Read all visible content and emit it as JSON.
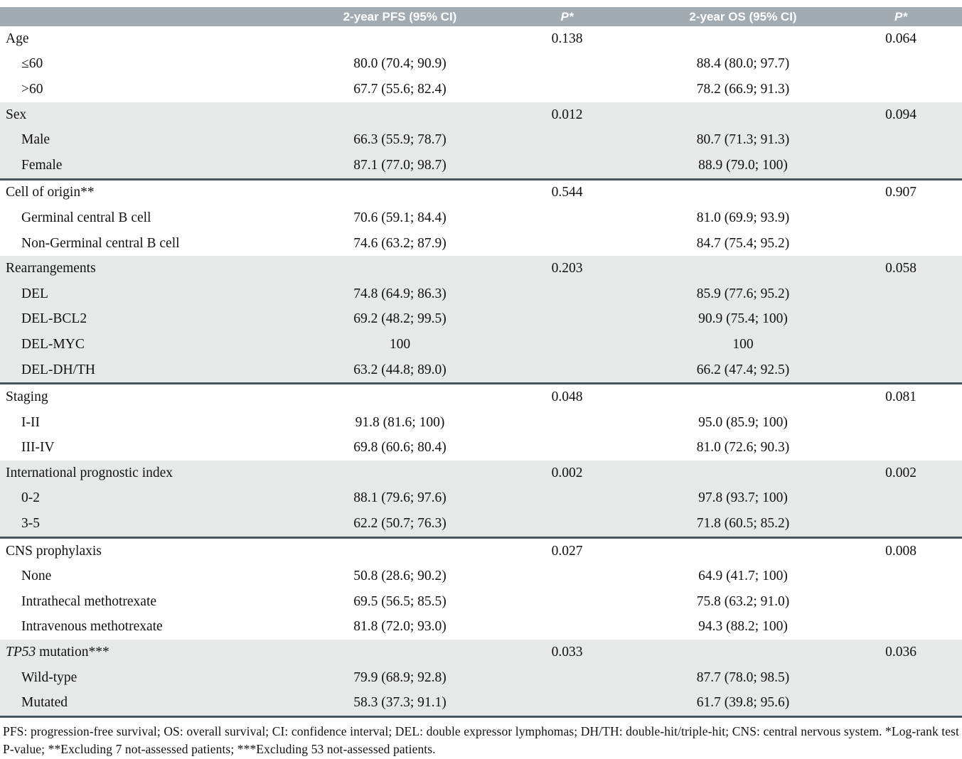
{
  "header": {
    "pfs": "2-year PFS (95% CI)",
    "p1": "P*",
    "os": "2-year OS (95% CI)",
    "p2": "P*"
  },
  "colors": {
    "header_bg": "#a2abb2",
    "shaded_row_bg": "#e7e8e8",
    "divider": "#47575f",
    "header_text": "#ffffff",
    "body_text": "#111111"
  },
  "chart_data": {
    "type": "table",
    "columns": [
      "",
      "2-year PFS (95% CI)",
      "P*",
      "2-year OS (95% CI)",
      "P*"
    ],
    "sections": [
      {
        "name": "Age",
        "shaded": false,
        "p_pfs": "0.138",
        "p_os": "0.064",
        "rows": [
          {
            "label": "≤60",
            "pfs": "80.0 (70.4; 90.9)",
            "os": "88.4 (80.0; 97.7)"
          },
          {
            "label": ">60",
            "pfs": "67.7 (55.6; 82.4)",
            "os": "78.2 (66.9; 91.3)"
          }
        ]
      },
      {
        "name": "Sex",
        "shaded": true,
        "p_pfs": "0.012",
        "p_os": "0.094",
        "rows": [
          {
            "label": "Male",
            "pfs": "66.3 (55.9; 78.7)",
            "os": "80.7 (71.3; 91.3)"
          },
          {
            "label": "Female",
            "pfs": "87.1 (77.0; 98.7)",
            "os": "88.9 (79.0; 100)"
          }
        ]
      },
      {
        "name": "Cell of origin**",
        "shaded": false,
        "p_pfs": "0.544",
        "p_os": "0.907",
        "rows": [
          {
            "label": "Germinal central B cell",
            "pfs": "70.6 (59.1; 84.4)",
            "os": "81.0 (69.9; 93.9)"
          },
          {
            "label": "Non-Germinal central B cell",
            "pfs": "74.6 (63.2; 87.9)",
            "os": "84.7 (75.4; 95.2)"
          }
        ]
      },
      {
        "name": "Rearrangements",
        "shaded": true,
        "p_pfs": "0.203",
        "p_os": "0.058",
        "rows": [
          {
            "label": "DEL",
            "pfs": "74.8 (64.9; 86.3)",
            "os": "85.9 (77.6; 95.2)"
          },
          {
            "label": "DEL-BCL2",
            "pfs": "69.2 (48.2; 99.5)",
            "os": "90.9 (75.4; 100)"
          },
          {
            "label": "DEL-MYC",
            "pfs": "100",
            "os": "100"
          },
          {
            "label": "DEL-DH/TH",
            "pfs": "63.2 (44.8; 89.0)",
            "os": "66.2 (47.4; 92.5)"
          }
        ]
      },
      {
        "name": "Staging",
        "shaded": false,
        "p_pfs": "0.048",
        "p_os": "0.081",
        "rows": [
          {
            "label": "I-II",
            "pfs": "91.8 (81.6; 100)",
            "os": "95.0 (85.9; 100)"
          },
          {
            "label": "III-IV",
            "pfs": "69.8 (60.6; 80.4)",
            "os": "81.0 (72.6; 90.3)"
          }
        ]
      },
      {
        "name": "International prognostic index",
        "shaded": true,
        "p_pfs": "0.002",
        "p_os": "0.002",
        "rows": [
          {
            "label": "0-2",
            "pfs": "88.1 (79.6; 97.6)",
            "os": "97.8 (93.7; 100)"
          },
          {
            "label": "3-5",
            "pfs": "62.2 (50.7; 76.3)",
            "os": "71.8 (60.5; 85.2)"
          }
        ]
      },
      {
        "name": "CNS prophylaxis",
        "shaded": false,
        "p_pfs": "0.027",
        "p_os": "0.008",
        "rows": [
          {
            "label": "None",
            "pfs": "50.8 (28.6; 90.2)",
            "os": "64.9 (41.7; 100)"
          },
          {
            "label": "Intrathecal methotrexate",
            "pfs": "69.5 (56.5; 85.5)",
            "os": "75.8 (63.2; 91.0)"
          },
          {
            "label": "Intravenous methotrexate",
            "pfs": "81.8 (72.0; 93.0)",
            "os": "94.3 (88.2; 100)"
          }
        ]
      },
      {
        "name": " mutation***",
        "name_italic_prefix": "TP53",
        "shaded": true,
        "p_pfs": "0.033",
        "p_os": "0.036",
        "rows": [
          {
            "label": "Wild-type",
            "pfs": "79.9 (68.9; 92.8)",
            "os": "87.7 (78.0; 98.5)"
          },
          {
            "label": "Mutated",
            "pfs": "58.3 (37.3; 91.1)",
            "os": "61.7 (39.8; 95.6)"
          }
        ]
      }
    ]
  },
  "footnote": "PFS: progression-free survival; OS: overall survival; CI: confidence interval; DEL: double expressor lymphomas; DH/TH: double-hit/triple-hit; CNS: central nervous system.  *Log-rank test P-value; **Excluding 7 not-assessed patients; ***Excluding 53 not-assessed patients."
}
